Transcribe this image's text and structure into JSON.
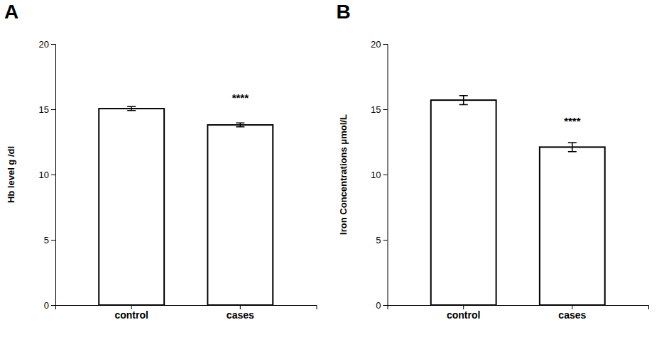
{
  "chart_data": [
    {
      "type": "bar",
      "title": "A",
      "categories": [
        "control",
        "cases"
      ],
      "values": [
        15.05,
        13.8
      ],
      "errors": [
        0.15,
        0.15
      ],
      "ylabel": "Hb level g /dl",
      "ylim": [
        0,
        20
      ],
      "yticks": [
        0,
        5,
        10,
        15,
        20
      ],
      "annotations": [
        {
          "text": "****",
          "x": "cases",
          "y": 15.5
        }
      ],
      "color": "#ffffff",
      "grid": false
    },
    {
      "type": "bar",
      "title": "B",
      "categories": [
        "control",
        "cases"
      ],
      "values": [
        15.7,
        12.1
      ],
      "errors": [
        0.35,
        0.35
      ],
      "ylabel": "Iron Concentrations μmol/L",
      "ylim": [
        0,
        20
      ],
      "yticks": [
        0,
        5,
        10,
        15,
        20
      ],
      "annotations": [
        {
          "text": "****",
          "x": "cases",
          "y": 13.7
        }
      ],
      "color": "#ffffff",
      "grid": false
    }
  ]
}
